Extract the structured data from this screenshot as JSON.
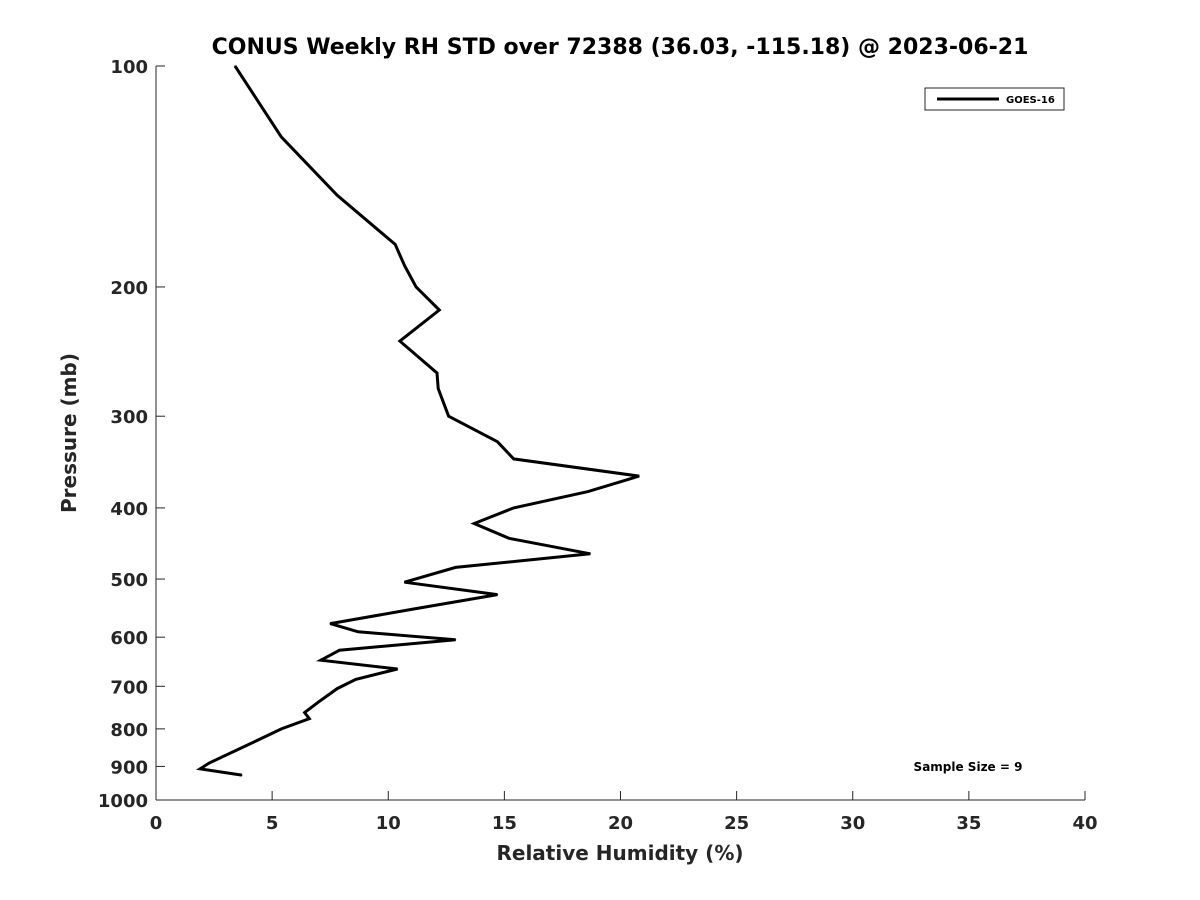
{
  "chart_data": {
    "type": "line",
    "title": "CONUS Weekly RH STD over 72388 (36.03, -115.18) @ 2023-06-21",
    "xlabel": "Relative Humidity (%)",
    "ylabel": "Pressure (mb)",
    "xlim": [
      0,
      40
    ],
    "ylim": [
      100,
      1000
    ],
    "yscale": "log",
    "y_reversed": true,
    "grid": false,
    "legend_position": "top-right",
    "x_ticks": [
      "0",
      "5",
      "10",
      "15",
      "20",
      "25",
      "30",
      "35",
      "40"
    ],
    "y_ticks": [
      "100",
      "200",
      "300",
      "400",
      "500",
      "600",
      "700",
      "800",
      "900",
      "1000"
    ],
    "series": [
      {
        "name": "GOES-16",
        "color": "#000000",
        "points": [
          {
            "x": 3.4,
            "y": 100
          },
          {
            "x": 5.4,
            "y": 125
          },
          {
            "x": 7.8,
            "y": 150
          },
          {
            "x": 10.3,
            "y": 175
          },
          {
            "x": 10.7,
            "y": 187
          },
          {
            "x": 11.2,
            "y": 200
          },
          {
            "x": 12.2,
            "y": 215
          },
          {
            "x": 10.5,
            "y": 237
          },
          {
            "x": 12.1,
            "y": 262
          },
          {
            "x": 12.15,
            "y": 275
          },
          {
            "x": 12.6,
            "y": 300
          },
          {
            "x": 14.7,
            "y": 325
          },
          {
            "x": 15.4,
            "y": 343
          },
          {
            "x": 20.8,
            "y": 362
          },
          {
            "x": 18.6,
            "y": 380
          },
          {
            "x": 15.4,
            "y": 400
          },
          {
            "x": 13.7,
            "y": 420
          },
          {
            "x": 15.2,
            "y": 440
          },
          {
            "x": 18.7,
            "y": 462
          },
          {
            "x": 12.9,
            "y": 482
          },
          {
            "x": 10.7,
            "y": 505
          },
          {
            "x": 14.7,
            "y": 525
          },
          {
            "x": 11.0,
            "y": 550
          },
          {
            "x": 7.5,
            "y": 575
          },
          {
            "x": 8.7,
            "y": 590
          },
          {
            "x": 12.9,
            "y": 605
          },
          {
            "x": 7.9,
            "y": 625
          },
          {
            "x": 7.1,
            "y": 645
          },
          {
            "x": 10.4,
            "y": 663
          },
          {
            "x": 8.6,
            "y": 685
          },
          {
            "x": 7.8,
            "y": 705
          },
          {
            "x": 7.0,
            "y": 735
          },
          {
            "x": 6.4,
            "y": 760
          },
          {
            "x": 6.6,
            "y": 775
          },
          {
            "x": 5.4,
            "y": 800
          },
          {
            "x": 4.0,
            "y": 840
          },
          {
            "x": 2.3,
            "y": 890
          },
          {
            "x": 1.9,
            "y": 907
          },
          {
            "x": 3.7,
            "y": 925
          }
        ]
      }
    ],
    "annotations": [
      "Sample Size = 9"
    ]
  }
}
